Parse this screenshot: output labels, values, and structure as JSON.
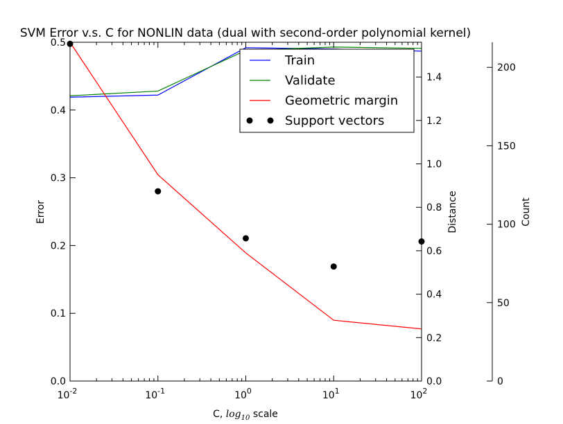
{
  "chart_data": {
    "type": "line",
    "title": "SVM Error v.s. C for NONLIN data (dual with second-order polynomial kernel)",
    "xlabel_prefix": "C, ",
    "xlabel_log": "log",
    "xlabel_sub": "10",
    "xlabel_suffix": " scale",
    "x_scale": "log",
    "x_ticks": [
      {
        "base": "10",
        "exp": "-2",
        "value": 0.01
      },
      {
        "base": "10",
        "exp": "-1",
        "value": 0.1
      },
      {
        "base": "10",
        "exp": "0",
        "value": 1
      },
      {
        "base": "10",
        "exp": "1",
        "value": 10
      },
      {
        "base": "10",
        "exp": "2",
        "value": 100
      }
    ],
    "xlim": [
      0.01,
      100
    ],
    "axes": {
      "error": {
        "label": "Error",
        "ylim": [
          0,
          0.5
        ],
        "ticks": [
          "0.0",
          "0.1",
          "0.2",
          "0.3",
          "0.4",
          "0.5"
        ]
      },
      "distance": {
        "label": "Distance",
        "ylim": [
          0,
          1.56
        ],
        "ticks": [
          "0.0",
          "0.2",
          "0.4",
          "0.6",
          "0.8",
          "1.0",
          "1.2",
          "1.4"
        ]
      },
      "count": {
        "label": "Count",
        "ylim": [
          0,
          216
        ],
        "ticks": [
          "0",
          "50",
          "100",
          "150",
          "200"
        ]
      }
    },
    "x": [
      0.01,
      0.1,
      1,
      10,
      100
    ],
    "series": [
      {
        "name": "Train",
        "axis": "error",
        "style": "line",
        "color": "#0000ff",
        "values": [
          0.419,
          0.422,
          0.492,
          0.49,
          0.487
        ]
      },
      {
        "name": "Validate",
        "axis": "error",
        "style": "line",
        "color": "#008000",
        "values": [
          0.421,
          0.428,
          0.488,
          0.493,
          0.491
        ]
      },
      {
        "name": "Geometric margin",
        "axis": "distance",
        "style": "line",
        "color": "#ff0000",
        "values": [
          1.56,
          0.95,
          0.59,
          0.28,
          0.24
        ]
      },
      {
        "name": "Support vectors",
        "axis": "count",
        "style": "points",
        "color": "#000000",
        "values": [
          215,
          121,
          91,
          73,
          89
        ]
      }
    ],
    "legend_position": "top-right",
    "grid": false
  }
}
